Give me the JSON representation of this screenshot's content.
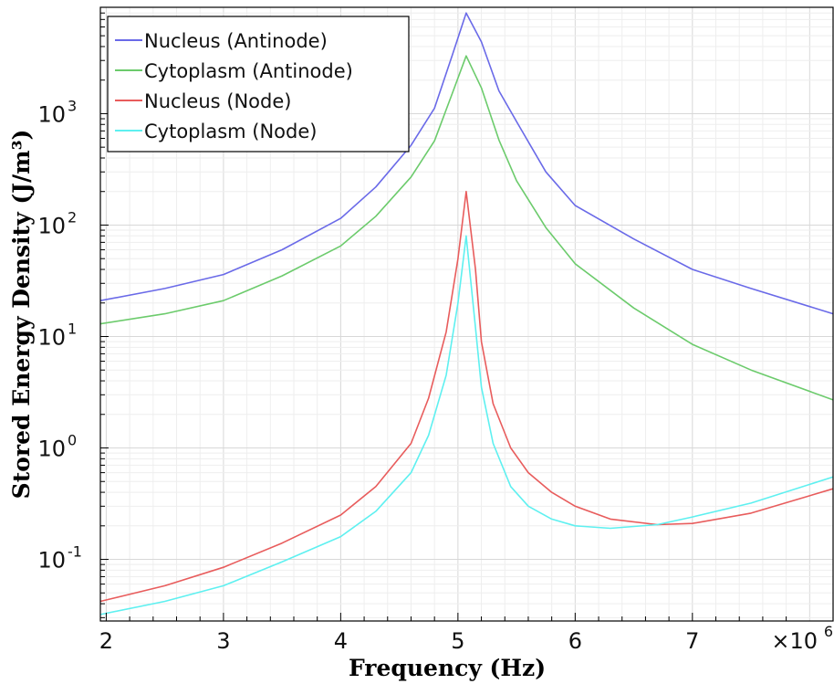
{
  "chart_data": {
    "type": "line",
    "xlabel": "Frequency (Hz)",
    "ylabel": "Stored Energy Density (J/m³)",
    "xlim": [
      1.95,
      8.2
    ],
    "ylim": [
      0.028,
      9000
    ],
    "yscale": "log",
    "x_multiplier": "×10",
    "x_multiplier_exp": "6",
    "grid": true,
    "legend_position": "top-left",
    "x_ticks": [
      {
        "value": 2,
        "label": "2"
      },
      {
        "value": 3,
        "label": "3"
      },
      {
        "value": 4,
        "label": "4"
      },
      {
        "value": 5,
        "label": "5"
      },
      {
        "value": 6,
        "label": "6"
      },
      {
        "value": 7,
        "label": "7"
      }
    ],
    "y_ticks": [
      {
        "value": 0.1,
        "base": "10",
        "exp": "-1"
      },
      {
        "value": 1,
        "base": "10",
        "exp": "0"
      },
      {
        "value": 10,
        "base": "10",
        "exp": "1"
      },
      {
        "value": 100,
        "base": "10",
        "exp": "2"
      },
      {
        "value": 1000,
        "base": "10",
        "exp": "3"
      }
    ],
    "series": [
      {
        "name": "Nucleus (Antinode)",
        "color": "#6a6ae8",
        "x": [
          1.95,
          2.5,
          3.0,
          3.5,
          4.0,
          4.3,
          4.6,
          4.8,
          4.95,
          5.07,
          5.2,
          5.35,
          5.5,
          5.75,
          6.0,
          6.5,
          7.0,
          7.5,
          8.2
        ],
        "y": [
          21,
          27,
          36,
          60,
          115,
          220,
          520,
          1120,
          3300,
          8000,
          4400,
          1600,
          850,
          300,
          150,
          75,
          40,
          27,
          16
        ]
      },
      {
        "name": "Cytoplasm (Antinode)",
        "color": "#6ccb6c",
        "x": [
          1.95,
          2.5,
          3.0,
          3.5,
          4.0,
          4.3,
          4.6,
          4.8,
          4.95,
          5.07,
          5.2,
          5.35,
          5.5,
          5.75,
          6.0,
          6.5,
          7.0,
          7.5,
          8.2
        ],
        "y": [
          13,
          16,
          21,
          35,
          65,
          120,
          270,
          570,
          1500,
          3300,
          1700,
          580,
          250,
          95,
          45,
          18,
          8.5,
          5,
          2.7
        ]
      },
      {
        "name": "Nucleus (Node)",
        "color": "#e85c5c",
        "x": [
          1.95,
          2.5,
          3.0,
          3.5,
          4.0,
          4.3,
          4.6,
          4.75,
          4.9,
          5.0,
          5.07,
          5.15,
          5.2,
          5.3,
          5.45,
          5.6,
          5.8,
          6.0,
          6.3,
          6.7,
          7.0,
          7.5,
          8.2
        ],
        "y": [
          0.042,
          0.058,
          0.085,
          0.14,
          0.25,
          0.45,
          1.1,
          2.8,
          11,
          50,
          200,
          40,
          9,
          2.5,
          1.0,
          0.6,
          0.4,
          0.3,
          0.23,
          0.205,
          0.21,
          0.26,
          0.43
        ]
      },
      {
        "name": "Cytoplasm (Node)",
        "color": "#5ef0f0",
        "x": [
          1.95,
          2.5,
          3.0,
          3.5,
          4.0,
          4.3,
          4.6,
          4.75,
          4.9,
          5.0,
          5.07,
          5.15,
          5.2,
          5.3,
          5.45,
          5.6,
          5.8,
          6.0,
          6.3,
          6.7,
          7.0,
          7.5,
          8.2
        ],
        "y": [
          0.032,
          0.042,
          0.058,
          0.095,
          0.16,
          0.27,
          0.6,
          1.3,
          4.5,
          20,
          80,
          12,
          3.5,
          1.1,
          0.45,
          0.3,
          0.23,
          0.2,
          0.19,
          0.205,
          0.24,
          0.32,
          0.55
        ]
      }
    ]
  }
}
